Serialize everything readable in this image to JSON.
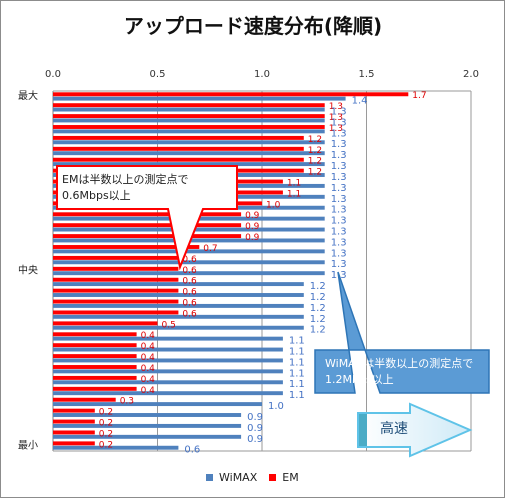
{
  "chart_data": {
    "type": "bar",
    "orientation": "horizontal",
    "title": "アップロード速度分布(降順)",
    "xlim": [
      0,
      2.0
    ],
    "xticks": [
      "0.0",
      "0.5",
      "1.0",
      "1.5",
      "2.0"
    ],
    "y_labels": {
      "top": "最大",
      "middle": "中央",
      "bottom": "最小"
    },
    "grid": true,
    "legend_position": "bottom",
    "series": [
      {
        "name": "WiMAX",
        "color": "#4f81bd",
        "label_color": "#4472c4",
        "values": [
          1.4,
          1.3,
          1.3,
          1.3,
          1.3,
          1.3,
          1.3,
          1.3,
          1.3,
          1.3,
          1.3,
          1.3,
          1.3,
          1.3,
          1.3,
          1.3,
          1.3,
          1.2,
          1.2,
          1.2,
          1.2,
          1.2,
          1.1,
          1.1,
          1.1,
          1.1,
          1.1,
          1.1,
          1.0,
          0.9,
          0.9,
          0.9,
          0.6
        ]
      },
      {
        "name": "EM",
        "color": "#ff0000",
        "label_color": "#e00000",
        "values": [
          1.7,
          1.3,
          1.3,
          1.3,
          1.2,
          1.2,
          1.2,
          1.2,
          1.1,
          1.1,
          1.0,
          0.9,
          0.9,
          0.9,
          0.7,
          0.6,
          0.6,
          0.6,
          0.6,
          0.6,
          0.6,
          0.5,
          0.4,
          0.4,
          0.4,
          0.4,
          0.4,
          0.4,
          0.3,
          0.2,
          0.2,
          0.2,
          0.2
        ]
      }
    ]
  },
  "annotations": {
    "em_callout": "EMは半数以上の測定点で\n0.6Mbps以上",
    "wimax_callout": "WiMAXは半数以上の測定点で\n1.2Mbps以上",
    "speed_arrow": "高速"
  },
  "legend": {
    "wimax": "WiMAX",
    "em": "EM"
  }
}
